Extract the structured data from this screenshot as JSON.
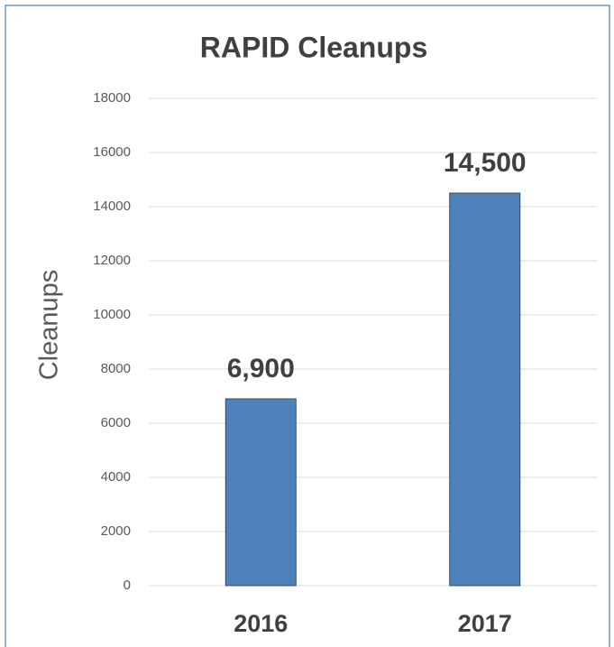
{
  "chart_data": {
    "type": "bar",
    "title": "RAPID Cleanups",
    "y_label": "Cleanups",
    "categories": [
      "2016",
      "2017"
    ],
    "values": [
      6900,
      14500
    ],
    "value_labels": [
      "6,900",
      "14,500"
    ],
    "color": "#4f81bd",
    "ylim": [
      0,
      18000
    ],
    "yticks": [
      0,
      2000,
      4000,
      6000,
      8000,
      10000,
      12000,
      14000,
      16000,
      18000
    ],
    "grid": true
  }
}
